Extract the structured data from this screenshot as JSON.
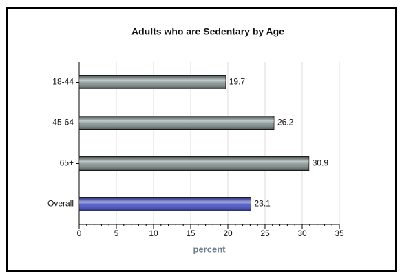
{
  "chart_data": {
    "type": "hbar",
    "title": "Adults who are Sedentary by Age",
    "categories": [
      "18-44",
      "45-64",
      "65+",
      "Overall"
    ],
    "values": [
      19.7,
      26.2,
      30.9,
      23.1
    ],
    "colors": [
      "#7b8a8a",
      "#7b8a8a",
      "#7b8a8a",
      "#3a46c4"
    ],
    "xlabel": "percent",
    "xlim": [
      0,
      35
    ],
    "xticks": [
      0,
      5,
      10,
      15,
      20,
      25,
      30,
      35
    ],
    "grid": true
  }
}
